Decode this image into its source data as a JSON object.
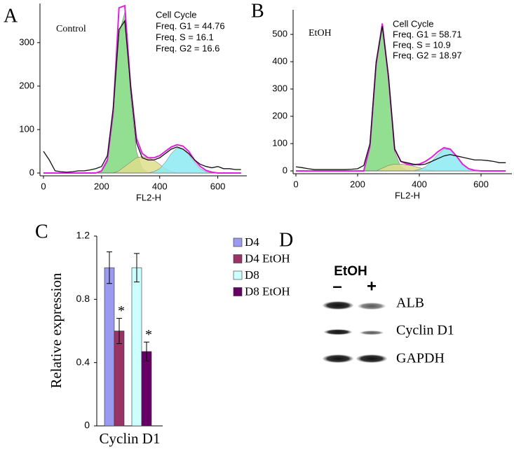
{
  "chart_data": [
    {
      "type": "line",
      "panel": "A",
      "sample": "Control",
      "xlabel": "FL2-H",
      "annotations": [
        "Cell Cycle",
        "Freq. G1  = 44.76",
        "Freq. S  = 16.1",
        "Freq. G2  = 16.6"
      ],
      "xlim": [
        0,
        700
      ],
      "ylim": [
        0,
        390
      ],
      "xticks": [
        0,
        200,
        400,
        600
      ],
      "yticks": [
        0,
        100,
        200,
        300
      ],
      "x": [
        0,
        20,
        40,
        60,
        80,
        100,
        120,
        140,
        160,
        180,
        200,
        220,
        240,
        260,
        280,
        300,
        320,
        340,
        360,
        380,
        400,
        420,
        440,
        460,
        480,
        500,
        520,
        540,
        560,
        580,
        600,
        620,
        640,
        660,
        680
      ],
      "series": [
        {
          "type": "area",
          "color": "#7fd97f",
          "values": [
            0,
            0,
            0,
            0,
            0,
            0,
            0,
            0,
            0,
            0,
            3,
            25,
            130,
            320,
            370,
            180,
            50,
            10,
            2,
            0,
            0,
            0,
            0,
            0,
            0,
            0,
            0,
            0,
            0,
            0,
            0,
            0,
            0,
            0,
            0
          ]
        },
        {
          "type": "area",
          "color": "#dede8c",
          "values": [
            0,
            0,
            0,
            0,
            0,
            0,
            0,
            0,
            0,
            0,
            0,
            0,
            0,
            5,
            15,
            25,
            35,
            38,
            35,
            30,
            20,
            10,
            3,
            0,
            0,
            0,
            0,
            0,
            0,
            0,
            0,
            0,
            0,
            0,
            0
          ]
        },
        {
          "type": "area",
          "color": "#8ceaf2",
          "values": [
            0,
            0,
            0,
            0,
            0,
            0,
            0,
            0,
            0,
            0,
            0,
            0,
            0,
            0,
            0,
            0,
            0,
            0,
            0,
            3,
            10,
            25,
            45,
            58,
            55,
            42,
            25,
            10,
            3,
            0,
            0,
            0,
            0,
            0,
            0
          ]
        },
        {
          "type": "line",
          "color": "#e020e0",
          "values": [
            0,
            0,
            0,
            0,
            0,
            0,
            0,
            0,
            0,
            0,
            5,
            30,
            140,
            380,
            385,
            200,
            80,
            45,
            35,
            35,
            40,
            50,
            60,
            65,
            62,
            50,
            30,
            15,
            6,
            2,
            0,
            0,
            0,
            0,
            0
          ]
        },
        {
          "type": "line",
          "color": "#111111",
          "values": [
            50,
            30,
            5,
            3,
            2,
            3,
            5,
            5,
            7,
            10,
            15,
            40,
            150,
            330,
            350,
            200,
            70,
            35,
            30,
            30,
            35,
            45,
            55,
            60,
            55,
            45,
            30,
            20,
            15,
            12,
            15,
            10,
            10,
            8,
            8
          ]
        }
      ]
    },
    {
      "type": "line",
      "panel": "B",
      "sample": "EtOH",
      "xlabel": "FL2-H",
      "annotations": [
        "Cell Cycle",
        "Freq. G1  = 58.71",
        "Freq. S  = 10.9",
        "Freq. G2  = 18.97"
      ],
      "xlim": [
        0,
        700
      ],
      "ylim": [
        0,
        590
      ],
      "xticks": [
        0,
        200,
        400,
        600
      ],
      "yticks": [
        0,
        100,
        200,
        300,
        400,
        500
      ],
      "x": [
        0,
        20,
        40,
        60,
        80,
        100,
        120,
        140,
        160,
        180,
        200,
        220,
        240,
        260,
        280,
        300,
        320,
        340,
        360,
        380,
        400,
        420,
        440,
        460,
        480,
        500,
        520,
        540,
        560,
        580,
        600,
        620,
        640,
        660,
        680
      ],
      "series": [
        {
          "type": "area",
          "color": "#7fd97f",
          "values": [
            0,
            0,
            0,
            0,
            0,
            0,
            0,
            0,
            0,
            0,
            0,
            0,
            85,
            380,
            530,
            330,
            70,
            15,
            3,
            0,
            0,
            0,
            0,
            0,
            0,
            0,
            0,
            0,
            0,
            0,
            0,
            0,
            0,
            0,
            0
          ]
        },
        {
          "type": "area",
          "color": "#dede8c",
          "values": [
            0,
            0,
            0,
            0,
            0,
            0,
            0,
            0,
            0,
            0,
            0,
            0,
            0,
            0,
            10,
            20,
            25,
            25,
            22,
            18,
            12,
            6,
            2,
            0,
            0,
            0,
            0,
            0,
            0,
            0,
            0,
            0,
            0,
            0,
            0
          ]
        },
        {
          "type": "area",
          "color": "#8ceaf2",
          "values": [
            0,
            0,
            0,
            0,
            0,
            0,
            0,
            0,
            0,
            0,
            0,
            0,
            0,
            0,
            0,
            0,
            0,
            0,
            0,
            0,
            5,
            15,
            35,
            60,
            80,
            78,
            55,
            25,
            8,
            2,
            0,
            0,
            0,
            0,
            0
          ]
        },
        {
          "type": "line",
          "color": "#e020e0",
          "values": [
            0,
            0,
            0,
            0,
            0,
            0,
            0,
            0,
            0,
            0,
            0,
            0,
            90,
            390,
            540,
            340,
            80,
            35,
            25,
            22,
            25,
            35,
            50,
            70,
            85,
            80,
            55,
            25,
            8,
            2,
            0,
            0,
            0,
            0,
            0
          ]
        },
        {
          "type": "line",
          "color": "#111111",
          "values": [
            15,
            12,
            8,
            5,
            5,
            5,
            5,
            5,
            5,
            6,
            8,
            20,
            100,
            400,
            530,
            350,
            80,
            35,
            30,
            25,
            22,
            25,
            35,
            45,
            55,
            60,
            55,
            50,
            45,
            40,
            40,
            38,
            35,
            30,
            30
          ]
        }
      ]
    },
    {
      "type": "bar",
      "panel": "C",
      "ylabel": "Relative expression",
      "categories": [
        "Cyclin D1"
      ],
      "ylim": [
        0,
        1.2
      ],
      "yticks": [
        0,
        0.4,
        0.8,
        1.2
      ],
      "legend": "right",
      "annotations": [
        "*",
        "*"
      ],
      "series": [
        {
          "name": "D4",
          "color": "#9a9af0",
          "values": [
            1.0
          ],
          "errors": [
            0.1
          ]
        },
        {
          "name": "D4 EtOH",
          "color": "#993366",
          "values": [
            0.6
          ],
          "errors": [
            0.08
          ]
        },
        {
          "name": "D8",
          "color": "#ccffff",
          "values": [
            1.0
          ],
          "errors": [
            0.09
          ]
        },
        {
          "name": "D8 EtOH",
          "color": "#660066",
          "values": [
            0.47
          ],
          "errors": [
            0.06
          ]
        }
      ]
    }
  ],
  "blot": {
    "panel": "D",
    "treatment": "EtOH",
    "lanes": [
      "–",
      "+"
    ],
    "bands": [
      "ALB",
      "Cyclin D1",
      "GAPDH"
    ]
  }
}
